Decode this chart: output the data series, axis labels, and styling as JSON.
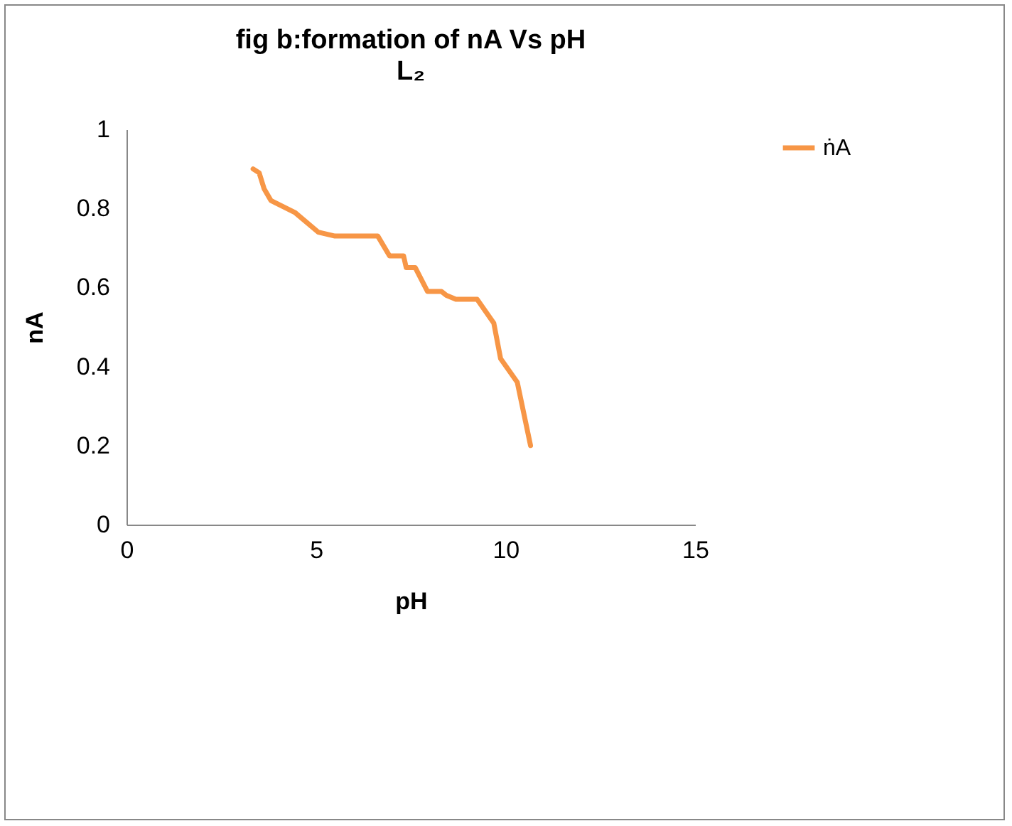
{
  "chart_data": {
    "type": "line",
    "title": "fig b:formation of nA Vs pH",
    "subtitle": "L₂",
    "xlabel": "pH",
    "ylabel": "nA",
    "legend": "right",
    "grid": false,
    "xlim": [
      0,
      15
    ],
    "xticks": [
      0,
      5,
      10,
      15
    ],
    "ylim": [
      0,
      1
    ],
    "yticks": [
      0,
      0.2,
      0.4,
      0.6,
      0.8,
      1
    ],
    "series": [
      {
        "name": "ṅA",
        "color": "#f79646",
        "x": [
          3.34,
          3.5,
          3.63,
          3.81,
          4.44,
          5.06,
          5.5,
          6.19,
          6.63,
          6.94,
          7.31,
          7.38,
          7.62,
          7.94,
          8.31,
          8.44,
          8.69,
          9.25,
          9.69,
          9.87,
          10.31,
          10.66
        ],
        "values": [
          0.9,
          0.89,
          0.85,
          0.82,
          0.79,
          0.74,
          0.73,
          0.73,
          0.73,
          0.68,
          0.68,
          0.65,
          0.65,
          0.59,
          0.59,
          0.58,
          0.57,
          0.57,
          0.51,
          0.42,
          0.36,
          0.2
        ]
      }
    ]
  }
}
